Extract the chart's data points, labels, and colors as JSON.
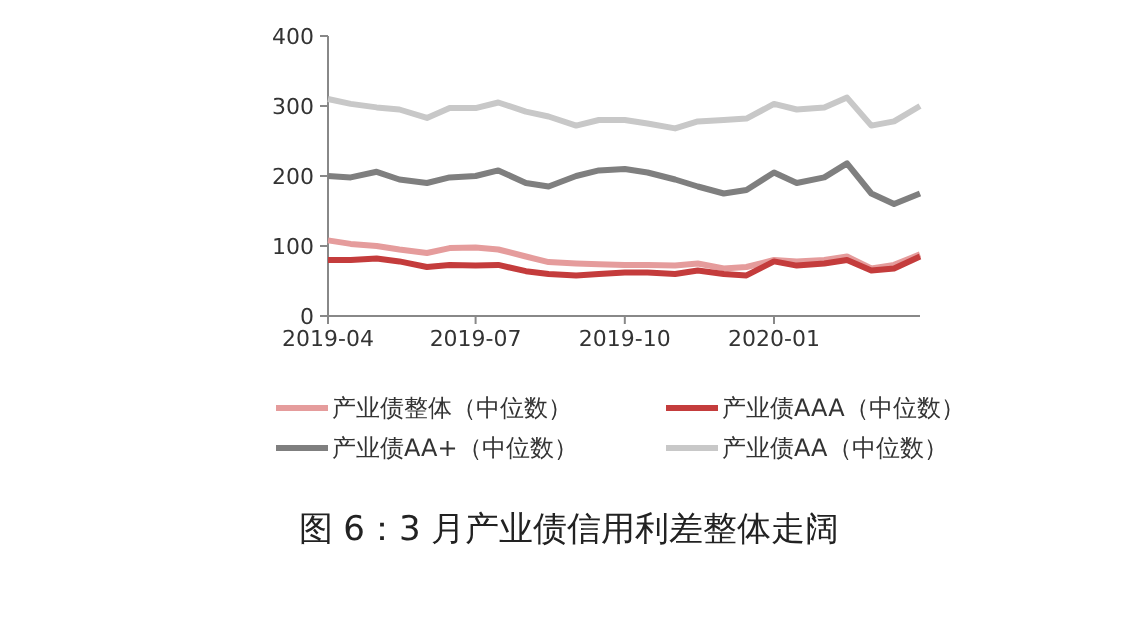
{
  "chart_data": {
    "type": "line",
    "title": "图 6：3 月产业债信用利差整体走阔",
    "x": [
      "2019-04-01",
      "2019-04-15",
      "2019-05-01",
      "2019-05-15",
      "2019-06-01",
      "2019-06-15",
      "2019-07-01",
      "2019-07-15",
      "2019-08-01",
      "2019-08-15",
      "2019-09-01",
      "2019-09-15",
      "2019-10-01",
      "2019-10-15",
      "2019-11-01",
      "2019-11-15",
      "2019-12-01",
      "2019-12-15",
      "2020-01-01",
      "2020-01-15",
      "2020-02-01",
      "2020-02-15",
      "2020-03-01",
      "2020-03-15",
      "2020-03-31"
    ],
    "series": [
      {
        "name": "产业债整体（中位数）",
        "color": "#e59c9c",
        "values": [
          108,
          103,
          100,
          95,
          90,
          97,
          98,
          95,
          85,
          77,
          75,
          74,
          73,
          73,
          72,
          75,
          68,
          70,
          80,
          78,
          80,
          85,
          68,
          73,
          88
        ]
      },
      {
        "name": "产业债AAA（中位数）",
        "color": "#c43c3c",
        "values": [
          80,
          80,
          82,
          78,
          70,
          73,
          72,
          73,
          64,
          60,
          58,
          60,
          62,
          62,
          60,
          65,
          60,
          58,
          78,
          72,
          75,
          80,
          65,
          68,
          85
        ]
      },
      {
        "name": "产业债AA+（中位数）",
        "color": "#7f7f7f",
        "values": [
          200,
          198,
          206,
          195,
          190,
          198,
          200,
          208,
          190,
          185,
          200,
          208,
          210,
          205,
          195,
          185,
          175,
          180,
          205,
          190,
          198,
          218,
          175,
          160,
          175
        ]
      },
      {
        "name": "产业债AA（中位数）",
        "color": "#c8c8c8",
        "values": [
          310,
          303,
          298,
          295,
          283,
          297,
          297,
          305,
          292,
          285,
          272,
          280,
          280,
          275,
          268,
          278,
          280,
          282,
          303,
          295,
          298,
          312,
          272,
          278,
          300
        ]
      }
    ],
    "xlim": [
      "2019-04-01",
      "2020-03-31"
    ],
    "xticks": [
      {
        "value": "2019-04-01",
        "label": "2019-04"
      },
      {
        "value": "2019-07-01",
        "label": "2019-07"
      },
      {
        "value": "2019-10-01",
        "label": "2019-10"
      },
      {
        "value": "2020-01-01",
        "label": "2020-01"
      }
    ],
    "ylim": [
      0,
      400
    ],
    "yticks": [
      0,
      100,
      200,
      300,
      400
    ],
    "legend": "bottom",
    "marker": "none",
    "line_style": "solid"
  }
}
